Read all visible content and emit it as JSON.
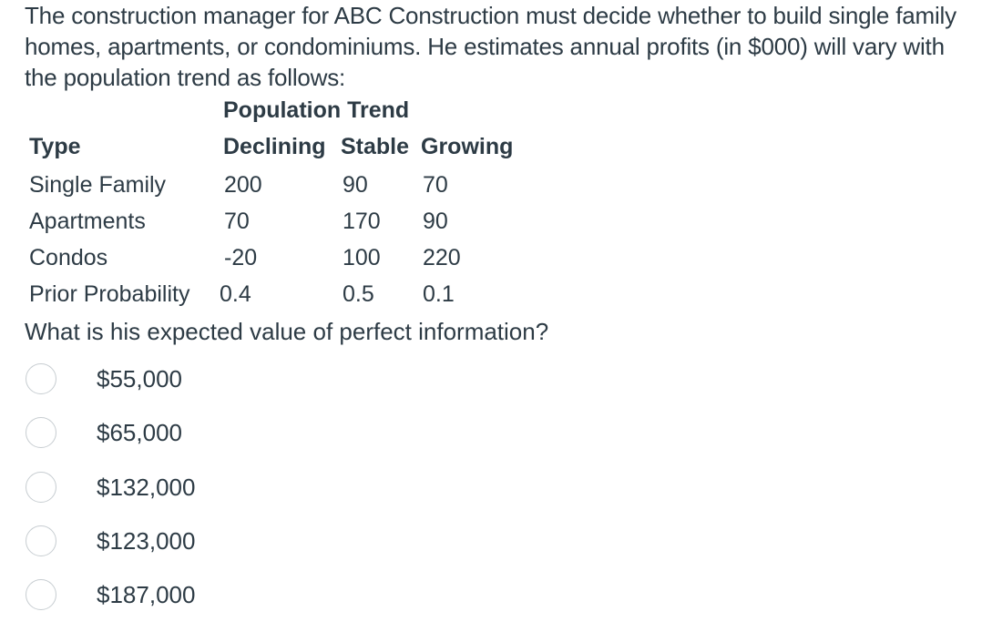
{
  "question": {
    "intro": "The construction manager for ABC Construction must decide whether to build single family homes, apartments, or condominiums. He estimates annual profits (in $000) will vary with the population trend as follows:",
    "prompt": "What is his expected value of perfect information?"
  },
  "table": {
    "group_header": "Population Trend",
    "type_header": "Type",
    "columns": [
      "Declining",
      "Stable",
      "Growing"
    ],
    "rows": [
      {
        "label": "Single Family",
        "values": [
          "200",
          "90",
          "70"
        ]
      },
      {
        "label": "Apartments",
        "values": [
          "70",
          "170",
          "90"
        ]
      },
      {
        "label": "Condos",
        "values": [
          "-20",
          "100",
          "220"
        ]
      }
    ],
    "prior": {
      "label": "Prior Probability",
      "values": [
        "0.4",
        "0.5",
        "0.1"
      ]
    }
  },
  "options": [
    {
      "label": "$55,000"
    },
    {
      "label": "$65,000"
    },
    {
      "label": "$132,000"
    },
    {
      "label": "$123,000"
    },
    {
      "label": "$187,000"
    }
  ]
}
